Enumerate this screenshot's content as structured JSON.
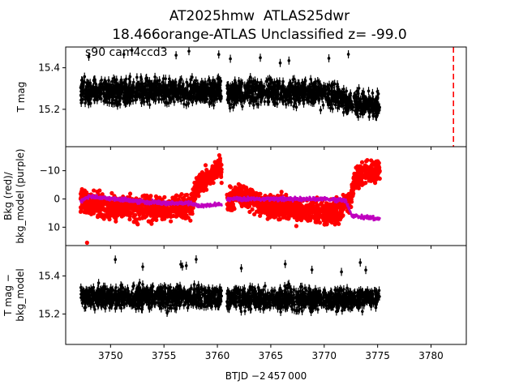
{
  "title": {
    "line1": "AT2025hmw  ATLAS25dwr",
    "line2": "18.466orange-ATLAS Unclassified z= -99.0"
  },
  "colors": {
    "mag": "#000000",
    "bkg": "#ff0000",
    "bkg_model": "#bf00bf",
    "event_line": "#ff0000"
  },
  "chart_data": [
    {
      "type": "scatter",
      "panel": "top",
      "ylabel": "T mag",
      "y_inverted": true,
      "ylim": [
        15.5,
        15.02
      ],
      "yticks": [
        15.2,
        15.4
      ],
      "ytick_labels": [
        "15.2",
        "15.4"
      ],
      "xlim": [
        3745.8,
        3783.3
      ],
      "annotation": "s90 cam4ccd3",
      "event_line_x": 3782.1,
      "series": [
        {
          "segment": 1,
          "x_range": [
            3747.2,
            3760.4
          ],
          "median": 15.29,
          "spread": 0.05,
          "trend": [
            [
              3747.2,
              15.29
            ],
            [
              3750.0,
              15.28
            ],
            [
              3755.0,
              15.29
            ],
            [
              3760.4,
              15.29
            ]
          ]
        },
        {
          "segment": 2,
          "x_range": [
            3760.9,
            3775.2
          ],
          "median": 15.28,
          "spread": 0.05,
          "trend": [
            [
              3760.9,
              15.28
            ],
            [
              3765.0,
              15.28
            ],
            [
              3770.0,
              15.28
            ],
            [
              3772.5,
              15.24
            ],
            [
              3775.2,
              15.21
            ]
          ]
        }
      ]
    },
    {
      "type": "scatter",
      "panel": "middle",
      "ylabel": "Bkg (red)/\nbkg_model (purple)",
      "ylim": [
        -18.5,
        16.5
      ],
      "yticks": [
        10,
        0,
        -10
      ],
      "ytick_labels": [
        "10",
        "0",
        "−10"
      ],
      "xlim": [
        3745.8,
        3783.3
      ],
      "series": [
        {
          "name": "Bkg",
          "color": "red",
          "trend": [
            [
              3747.2,
              1
            ],
            [
              3750,
              3
            ],
            [
              3755,
              3.5
            ],
            [
              3757.5,
              3
            ],
            [
              3758.0,
              -4
            ],
            [
              3760.3,
              -12
            ],
            [
              3760.9,
              1
            ],
            [
              3762,
              -2
            ],
            [
              3764,
              2
            ],
            [
              3768,
              4.5
            ],
            [
              3771,
              5
            ],
            [
              3772.3,
              2
            ],
            [
              3773.0,
              -8
            ],
            [
              3775.2,
              -10
            ]
          ]
        },
        {
          "name": "bkg_model",
          "color": "purple",
          "trend": [
            [
              3747.2,
              1
            ],
            [
              3748.0,
              -1
            ],
            [
              3750,
              0
            ],
            [
              3755,
              1.5
            ],
            [
              3757.5,
              1.5
            ],
            [
              3758.2,
              2.5
            ],
            [
              3760.4,
              2
            ],
            [
              3760.9,
              0
            ],
            [
              3765,
              0
            ],
            [
              3770,
              0
            ],
            [
              3772,
              0.5
            ],
            [
              3772.6,
              6
            ],
            [
              3775.2,
              7
            ]
          ]
        }
      ]
    },
    {
      "type": "scatter",
      "panel": "bottom",
      "ylabel": "T mag −\nbkg_model",
      "y_inverted": true,
      "ylim": [
        15.56,
        15.04
      ],
      "yticks": [
        15.2,
        15.4
      ],
      "ytick_labels": [
        "15.2",
        "15.4"
      ],
      "xlim": [
        3745.8,
        3783.3
      ],
      "xticks": [
        3750,
        3755,
        3760,
        3765,
        3770,
        3775,
        3780
      ],
      "xtick_labels": [
        "3750",
        "3755",
        "3760",
        "3765",
        "3770",
        "3775",
        "3780"
      ],
      "xlabel": "BTJD −2 457 000",
      "series": [
        {
          "segment": 1,
          "x_range": [
            3747.2,
            3760.4
          ],
          "median": 15.29,
          "spread": 0.05
        },
        {
          "segment": 2,
          "x_range": [
            3760.9,
            3775.2
          ],
          "median": 15.28,
          "spread": 0.05
        }
      ]
    }
  ]
}
